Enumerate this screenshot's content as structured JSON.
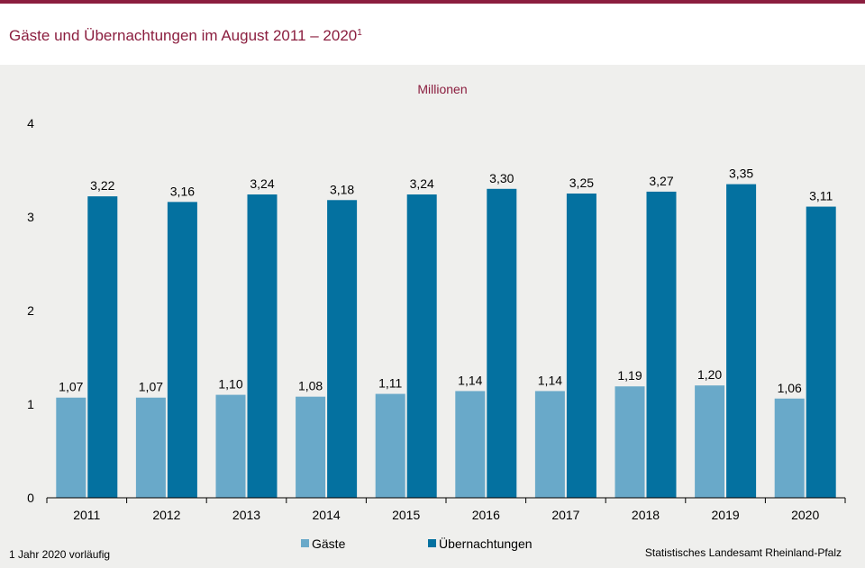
{
  "header": {
    "title": "Gäste und Übernachtungen im August 2011 – 2020",
    "title_sup": "1"
  },
  "chart_data": {
    "type": "bar",
    "unit_label": "Millionen",
    "categories": [
      "2011",
      "2012",
      "2013",
      "2014",
      "2015",
      "2016",
      "2017",
      "2018",
      "2019",
      "2020"
    ],
    "series": [
      {
        "name": "Gäste",
        "color": "#69a9c9",
        "values": [
          1.07,
          1.07,
          1.1,
          1.08,
          1.11,
          1.14,
          1.14,
          1.19,
          1.2,
          1.06
        ],
        "labels": [
          "1,07",
          "1,07",
          "1,10",
          "1,08",
          "1,11",
          "1,14",
          "1,14",
          "1,19",
          "1,20",
          "1,06"
        ]
      },
      {
        "name": "Übernachtungen",
        "color": "#0471a0",
        "values": [
          3.22,
          3.16,
          3.24,
          3.18,
          3.24,
          3.3,
          3.25,
          3.27,
          3.35,
          3.11
        ],
        "labels": [
          "3,22",
          "3,16",
          "3,24",
          "3,18",
          "3,24",
          "3,30",
          "3,25",
          "3,27",
          "3,35",
          "3,11"
        ]
      }
    ],
    "ylim": [
      0,
      4
    ],
    "yticks": [
      0,
      1,
      2,
      3,
      4
    ],
    "grid": false,
    "legend_position": "bottom-center"
  },
  "footer": {
    "footnote": "1 Jahr 2020 vorläufig",
    "source": "Statistisches Landesamt Rheinland-Pfalz"
  }
}
